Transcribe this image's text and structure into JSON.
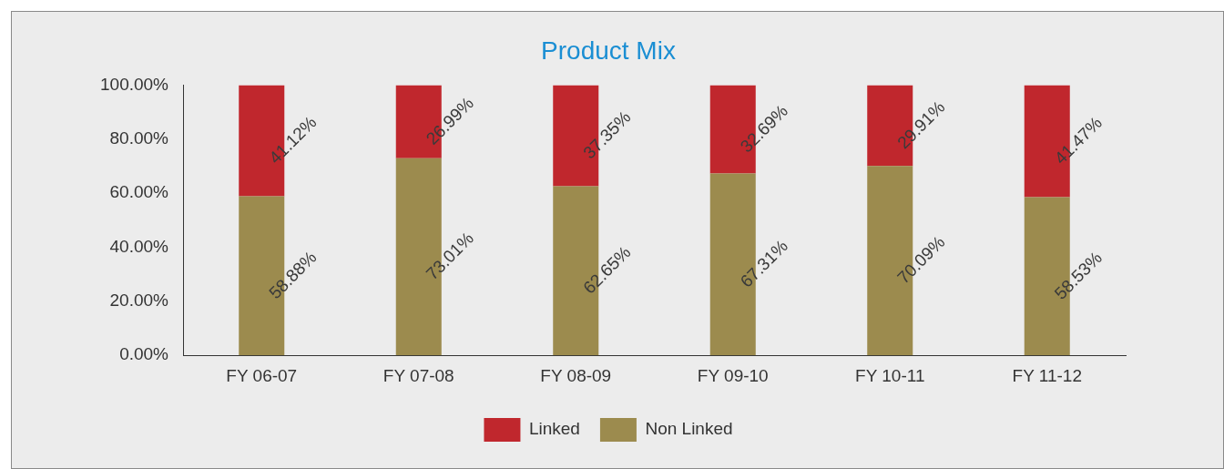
{
  "chart_data": {
    "type": "bar",
    "title": "Product Mix",
    "stacked": true,
    "categories": [
      "FY 06-07",
      "FY 07-08",
      "FY 08-09",
      "FY 09-10",
      "FY 10-11",
      "FY 11-12"
    ],
    "series": [
      {
        "name": "Non Linked",
        "color": "#9c8b4e",
        "values": [
          58.88,
          73.01,
          62.65,
          67.31,
          70.09,
          58.53
        ],
        "value_labels": [
          "58.88%",
          "73.01%",
          "62.65%",
          "67.31%",
          "70.09%",
          "58.53%"
        ]
      },
      {
        "name": "Linked",
        "color": "#c0272d",
        "values": [
          41.12,
          26.99,
          37.35,
          32.69,
          29.91,
          41.47
        ],
        "value_labels": [
          "41.12%",
          "26.99%",
          "37.35%",
          "32.69%",
          "29.91%",
          "41.47%"
        ]
      }
    ],
    "ylim": [
      0,
      100
    ],
    "yticks": [
      {
        "value": 0,
        "label": "0.00%"
      },
      {
        "value": 20,
        "label": "20.00%"
      },
      {
        "value": 40,
        "label": "40.00%"
      },
      {
        "value": 60,
        "label": "60.00%"
      },
      {
        "value": 80,
        "label": "80.00%"
      },
      {
        "value": 100,
        "label": "100.00%"
      }
    ],
    "grid": false,
    "legend": "bottom"
  }
}
